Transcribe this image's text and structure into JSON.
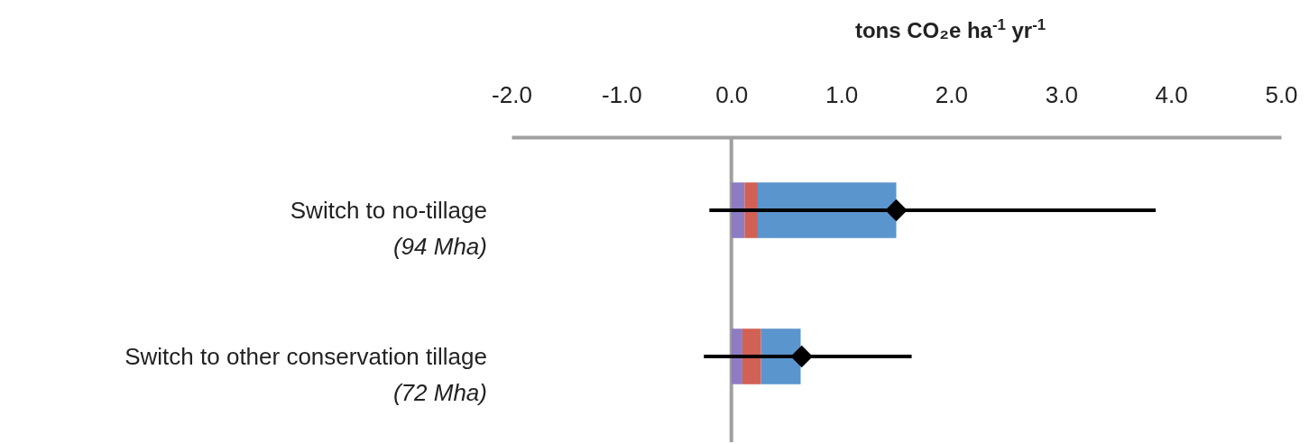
{
  "chart_data": {
    "type": "bar",
    "orientation": "horizontal",
    "stacked": true,
    "xlabel": "tons CO₂e ha$^{-1}$ yr$^{-1}$",
    "categories": [
      "Switch to no-tillage\n(94 Mha)",
      "Switch to other conservation tillage\n(72 Mha)"
    ],
    "series": [
      {
        "color": "#8e7cc3",
        "values": [
          0.12,
          0.1
        ]
      },
      {
        "color": "#d16055",
        "values": [
          0.12,
          0.17
        ]
      },
      {
        "color": "#5b95cd",
        "values": [
          1.26,
          0.36
        ]
      },
      {
        "type": "scatter",
        "color": "#000000",
        "marker": "diamond",
        "values": [
          1.5,
          0.64
        ],
        "errors": [
          [
            -0.2,
            3.86
          ],
          [
            -0.25,
            1.64
          ]
        ]
      }
    ],
    "xlim": [
      -2,
      5
    ],
    "xticks": [
      {
        "value": -2,
        "label": "-2.0"
      },
      {
        "value": -1,
        "label": "-1.0"
      },
      {
        "value": 0,
        "label": "0.0"
      },
      {
        "value": 1,
        "label": "1.0"
      },
      {
        "value": 2,
        "label": "2.0"
      },
      {
        "value": 3,
        "label": "3.0"
      },
      {
        "value": 4,
        "label": "4.0"
      },
      {
        "value": 5,
        "label": "5.0"
      }
    ]
  }
}
